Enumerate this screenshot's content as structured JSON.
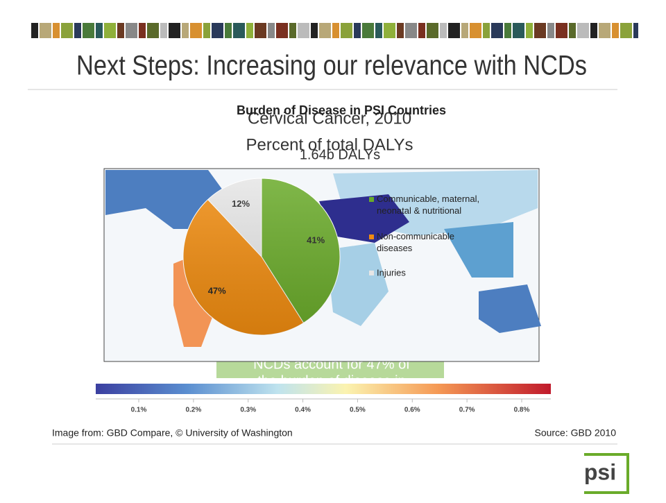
{
  "slide_title": "Next Steps: Increasing our relevance with NCDs",
  "map": {
    "title": "Cervical Cancer, 2010",
    "subtitle": "Percent of total DALYs",
    "scale_labels": [
      "0.1%",
      "0.2%",
      "0.3%",
      "0.4%",
      "0.5%",
      "0.6%",
      "0.7%",
      "0.8%"
    ]
  },
  "callout": [
    "NCDs account for 47% of",
    "the burden of disease in"
  ],
  "chart_data": {
    "type": "pie",
    "title": "Burden of Disease in PSI Countries",
    "subtitle": "1.64b DALYs",
    "categories": [
      "Communicable, maternal, neonatal & nutritional",
      "Non-communicable diseases",
      "Injuries"
    ],
    "values": [
      41,
      47,
      12
    ],
    "value_labels": [
      "41%",
      "47%",
      "12%"
    ],
    "colors": [
      "#6aab2a",
      "#f08c10",
      "#e6e6e6"
    ]
  },
  "footer": {
    "credit": "Image from: GBD Compare, © University of Washington",
    "source": "Source: GBD 2010"
  },
  "logo": "psi"
}
